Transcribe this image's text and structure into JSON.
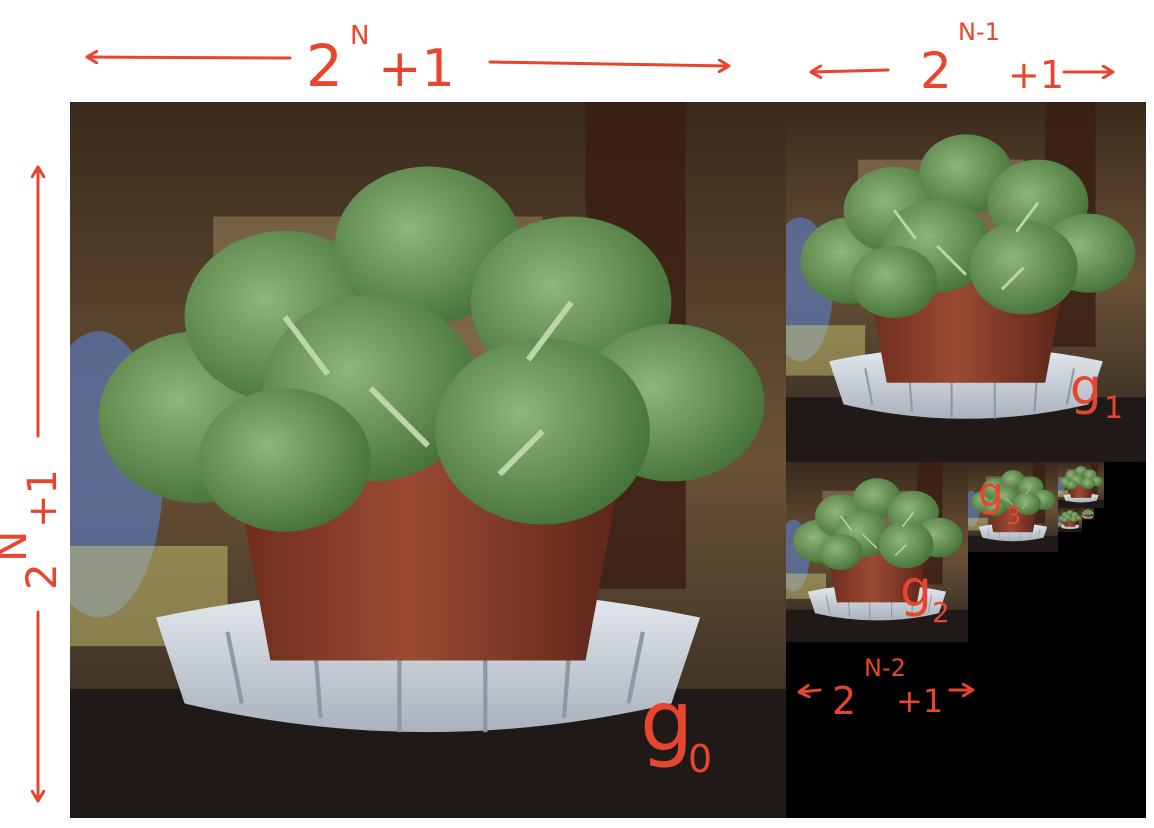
{
  "colors": {
    "annotation": "#e8452f",
    "background": "#ffffff",
    "pyramid_empty": "#000000"
  },
  "labels": {
    "top_width_base": "2",
    "top_width_exp": "N",
    "top_width_tail": "+1",
    "level1_width_base": "2",
    "level1_width_exp": "N-1",
    "level1_width_tail": "+1",
    "level2_width_base": "2",
    "level2_width_exp": "N-2",
    "level2_width_tail": "+1",
    "height_base": "2",
    "height_exp": "N",
    "height_tail": "+1",
    "g0": "g",
    "g0_sub": "0",
    "g1": "g",
    "g1_sub": "1",
    "g2": "g",
    "g2_sub": "2",
    "g3": "g",
    "g3_sub": "3"
  }
}
